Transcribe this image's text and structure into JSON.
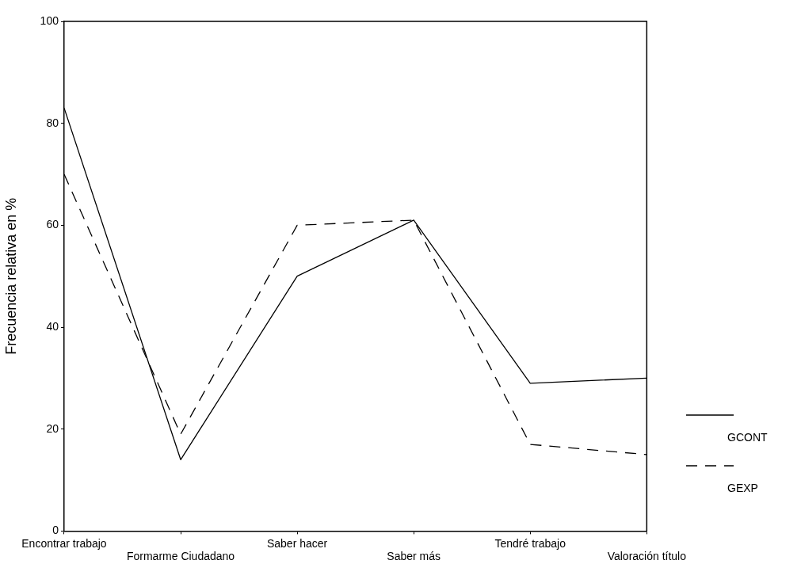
{
  "chart_data": {
    "type": "line",
    "ylabel": "Frecuencia relativa en %",
    "categories": [
      "Encontrar trabajo",
      "Formarme Ciudadano",
      "Saber hacer",
      "Saber más",
      "Tendré trabajo",
      "Valoración título"
    ],
    "series": [
      {
        "name": "GCONT",
        "color": "#000000",
        "line_style": "solid",
        "values": [
          83,
          14,
          50,
          61,
          29,
          30
        ]
      },
      {
        "name": "GEXP",
        "color": "#000000",
        "line_style": "dashed",
        "values": [
          70,
          19,
          60,
          61,
          17,
          15
        ]
      }
    ],
    "ylim": [
      0,
      100
    ],
    "yticks": [
      0,
      20,
      40,
      60,
      80,
      100
    ],
    "grid": false,
    "legend": "bottom right",
    "marker": "none"
  }
}
